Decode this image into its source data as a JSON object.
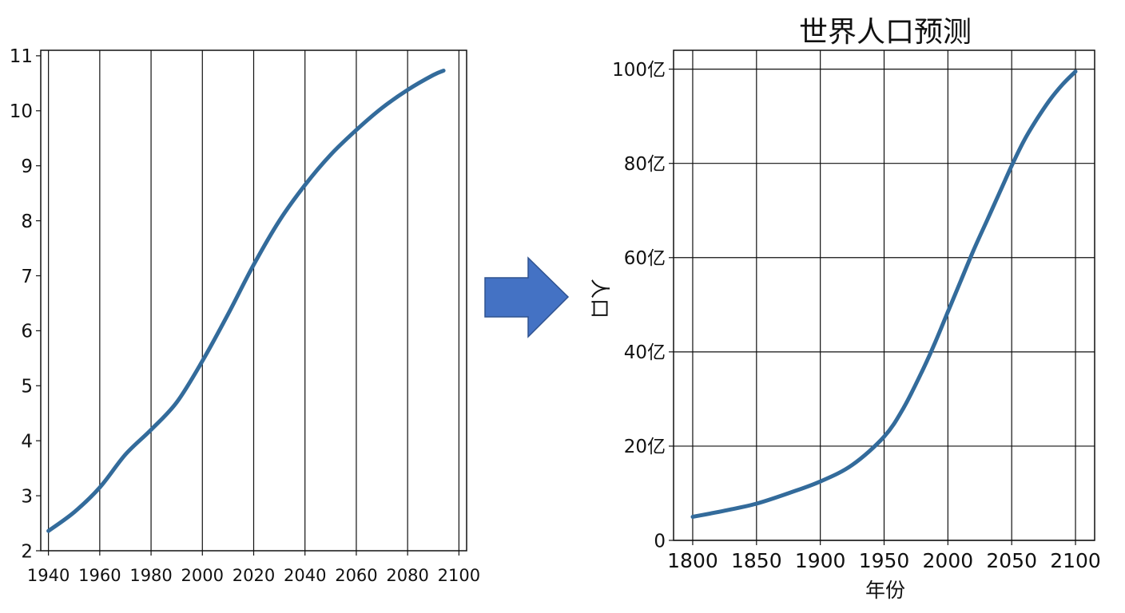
{
  "chart_data": [
    {
      "type": "line",
      "title": "",
      "xlabel": "",
      "ylabel": "",
      "xlim": [
        1937,
        2103
      ],
      "ylim": [
        2,
        11.1
      ],
      "xticks": [
        1940,
        1960,
        1980,
        2000,
        2020,
        2040,
        2060,
        2080,
        2100
      ],
      "yticks": [
        2,
        3,
        4,
        5,
        6,
        7,
        8,
        9,
        10,
        11
      ],
      "ytick_labels": [
        "2",
        "3",
        "4",
        "5",
        "6",
        "7",
        "8",
        "9",
        "10",
        "11"
      ],
      "grid": "vertical",
      "color": "#336b9b",
      "series": [
        {
          "x": [
            1940,
            1950,
            1960,
            1970,
            1980,
            1990,
            2000,
            2010,
            2020,
            2030,
            2040,
            2050,
            2060,
            2070,
            2080,
            2090,
            2094
          ],
          "y": [
            2.36,
            2.7,
            3.15,
            3.75,
            4.2,
            4.7,
            5.45,
            6.3,
            7.2,
            8.0,
            8.65,
            9.2,
            9.65,
            10.05,
            10.38,
            10.65,
            10.73
          ]
        }
      ]
    },
    {
      "type": "line",
      "title": "世界人口预测",
      "xlabel": "年份",
      "ylabel": "人口",
      "xlim": [
        1785,
        2115
      ],
      "ylim": [
        0,
        104
      ],
      "xticks": [
        1800,
        1850,
        1900,
        1950,
        2000,
        2050,
        2100
      ],
      "yticks": [
        0,
        20,
        40,
        60,
        80,
        100
      ],
      "ytick_labels": [
        "0",
        "20亿",
        "40亿",
        "60亿",
        "80亿",
        "100亿"
      ],
      "grid": "both",
      "color": "#336b9b",
      "series": [
        {
          "x": [
            1800,
            1825,
            1850,
            1875,
            1900,
            1925,
            1950,
            1965,
            1980,
            1990,
            2000,
            2010,
            2020,
            2030,
            2040,
            2050,
            2060,
            2070,
            2080,
            2090,
            2100
          ],
          "y": [
            5,
            6.3,
            7.8,
            10,
            12.5,
            16,
            22,
            28,
            36,
            42,
            48.5,
            55,
            61.5,
            67.5,
            73.5,
            79.5,
            85,
            89.5,
            93.5,
            96.8,
            99.5
          ]
        }
      ]
    }
  ]
}
